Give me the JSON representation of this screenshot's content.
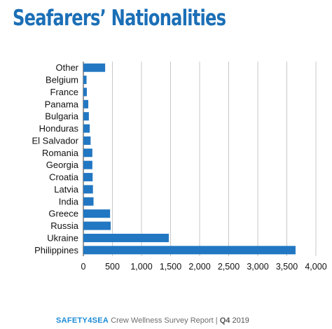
{
  "title": "Seafarers’ Nationalities",
  "colors": {
    "title": "#1b6fb6",
    "bar": "#2277c2",
    "grid": "#c8c8c8",
    "axis": "#333333",
    "brand": "#1b8bd6"
  },
  "chart_data": {
    "type": "bar",
    "orientation": "horizontal",
    "categories": [
      "Other",
      "Belgium",
      "France",
      "Panama",
      "Bulgaria",
      "Honduras",
      "El Salvador",
      "Romania",
      "Georgia",
      "Croatia",
      "Latvia",
      "India",
      "Greece",
      "Russia",
      "Ukraine",
      "Philippines"
    ],
    "values": [
      375,
      55,
      60,
      85,
      95,
      110,
      125,
      155,
      155,
      160,
      165,
      175,
      460,
      470,
      1470,
      3650
    ],
    "xlim": [
      0,
      4000
    ],
    "xticks": [
      0,
      500,
      1000,
      1500,
      2000,
      2500,
      3000,
      3500,
      4000
    ],
    "xtick_labels": [
      "0",
      "500",
      "1,000",
      "1,500",
      "2,000",
      "2,500",
      "3,000",
      "3,500",
      "4,000"
    ],
    "grid": true,
    "xlabel": "",
    "ylabel": ""
  },
  "footer": {
    "brand": "SAFETY4SEA",
    "subtitle": "Crew Wellness Survey Report",
    "separator": "|",
    "period": "Q4",
    "year": "2019"
  }
}
